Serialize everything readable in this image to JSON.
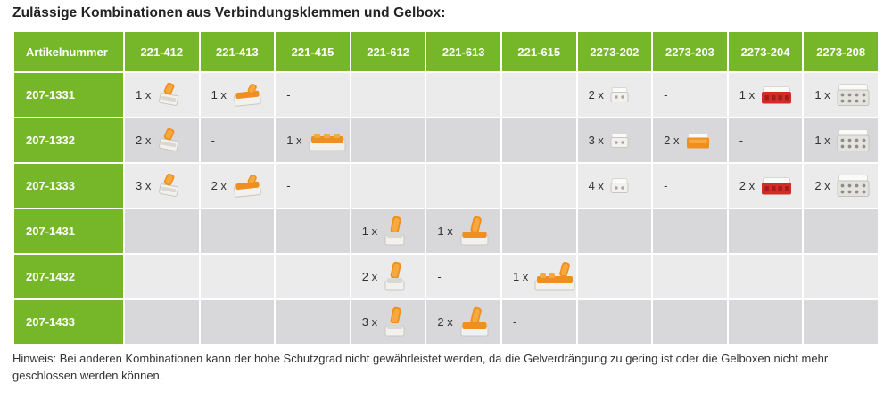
{
  "title": "Zulässige Kombinationen aus Verbindungsklemmen und Gelbox:",
  "note": "Hinweis: Bei anderen Kombinationen kann der hohe Schutzgrad nicht gewährleistet werden, da die Gelverdrängung zu gering ist oder die Gelboxen nicht mehr geschlossen werden können.",
  "colors": {
    "accent_green": "#76b72a",
    "header_text": "#ffffff",
    "row_light": "#ebebeb",
    "row_dark": "#d8d8db",
    "body_text": "#333333",
    "connector_orange": "#ee8f1f",
    "connector_red": "#d32b26",
    "connector_gray": "#e4e3df"
  },
  "table": {
    "header": [
      "Artikelnummer",
      "221-412",
      "221-413",
      "221-415",
      "221-612",
      "221-613",
      "221-615",
      "2273-202",
      "2273-203",
      "2273-204",
      "2273-208"
    ],
    "rows": [
      {
        "article": "207-1331",
        "cells": [
          {
            "qty": "1 x",
            "icon": "connector-221-412-icon"
          },
          {
            "qty": "1 x",
            "icon": "connector-221-413-icon"
          },
          {
            "dash": "-"
          },
          {},
          {},
          {},
          {
            "qty": "2 x",
            "icon": "connector-2273-202-icon"
          },
          {
            "dash": "-"
          },
          {
            "qty": "1 x",
            "icon": "connector-2273-204-icon"
          },
          {
            "qty": "1 x",
            "icon": "connector-2273-208-icon"
          }
        ]
      },
      {
        "article": "207-1332",
        "cells": [
          {
            "qty": "2 x",
            "icon": "connector-221-412-icon"
          },
          {
            "dash": "-"
          },
          {
            "qty": "1 x",
            "icon": "connector-221-415-icon"
          },
          {},
          {},
          {},
          {
            "qty": "3 x",
            "icon": "connector-2273-202-icon"
          },
          {
            "qty": "2 x",
            "icon": "connector-2273-203-icon"
          },
          {
            "dash": "-"
          },
          {
            "qty": "1 x",
            "icon": "connector-2273-208-icon"
          }
        ]
      },
      {
        "article": "207-1333",
        "cells": [
          {
            "qty": "3 x",
            "icon": "connector-221-412-icon"
          },
          {
            "qty": "2 x",
            "icon": "connector-221-413-icon"
          },
          {
            "dash": "-"
          },
          {},
          {},
          {},
          {
            "qty": "4 x",
            "icon": "connector-2273-202-icon"
          },
          {
            "dash": "-"
          },
          {
            "qty": "2 x",
            "icon": "connector-2273-204-icon"
          },
          {
            "qty": "2 x",
            "icon": "connector-2273-208-icon"
          }
        ]
      },
      {
        "article": "207-1431",
        "cells": [
          {},
          {},
          {},
          {
            "qty": "1 x",
            "icon": "connector-221-612-icon"
          },
          {
            "qty": "1 x",
            "icon": "connector-221-613-icon"
          },
          {
            "dash": "-"
          },
          {},
          {},
          {},
          {}
        ]
      },
      {
        "article": "207-1432",
        "cells": [
          {},
          {},
          {},
          {
            "qty": "2 x",
            "icon": "connector-221-612-icon"
          },
          {
            "dash": "-"
          },
          {
            "qty": "1 x",
            "icon": "connector-221-615-icon"
          },
          {},
          {},
          {},
          {}
        ]
      },
      {
        "article": "207-1433",
        "cells": [
          {},
          {},
          {},
          {
            "qty": "3 x",
            "icon": "connector-221-612-icon"
          },
          {
            "qty": "2 x",
            "icon": "connector-221-613-icon"
          },
          {
            "dash": "-"
          },
          {},
          {},
          {},
          {}
        ]
      }
    ]
  }
}
